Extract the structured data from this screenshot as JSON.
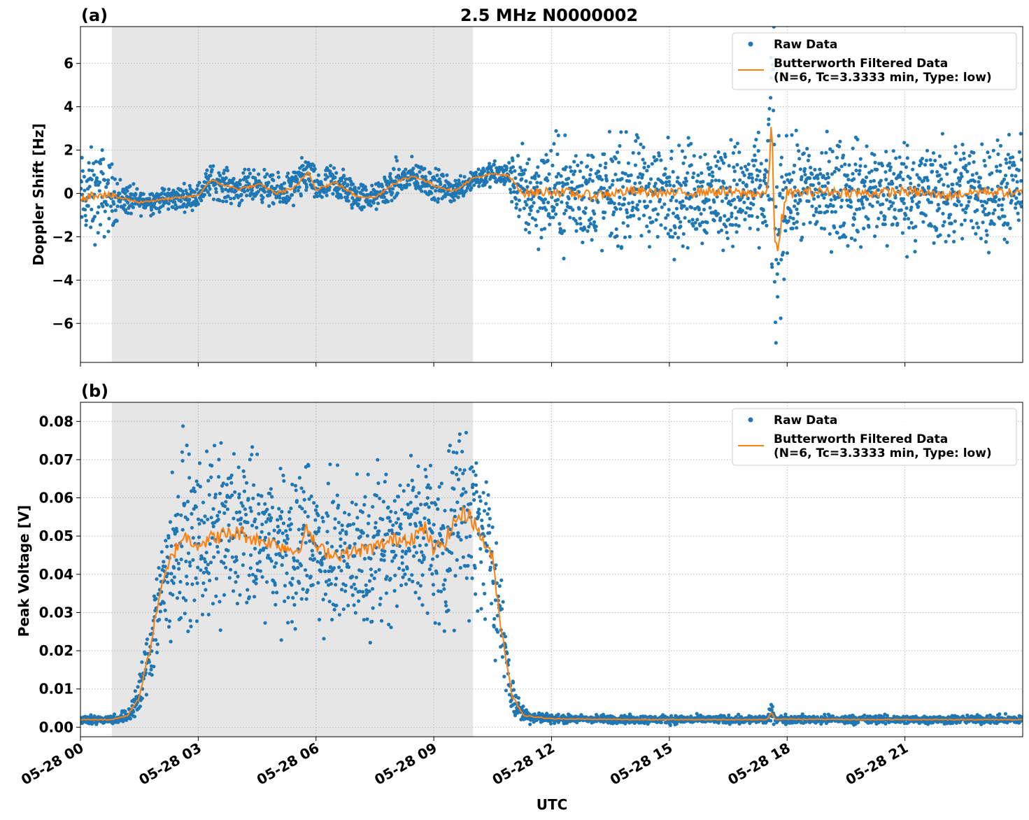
{
  "chart_data": [
    {
      "type": "scatter",
      "panel_label": "(a)",
      "title": "2.5 MHz N0000002",
      "xlabel": "",
      "ylabel": "Doppler Shift [Hz]",
      "ylim": [
        -7.8,
        7.7
      ],
      "yticks": [
        6,
        4,
        2,
        0,
        -2,
        -4,
        -6
      ],
      "ytick_labels": [
        "6",
        "4",
        "2",
        "0",
        "−2",
        "−4",
        "−6"
      ],
      "xlim_hours": [
        0,
        24
      ],
      "grid": true,
      "legend_position": "top-right",
      "shaded_interval_hours": [
        0.8,
        10.0
      ],
      "series": [
        {
          "name": "Raw Data",
          "kind": "points",
          "color": "#1f77b4"
        },
        {
          "name": "Butterworth Filtered Data\n(N=6, Tc=3.3333 min, Type: low)",
          "kind": "line",
          "color": "#ff7f0e"
        }
      ],
      "filtered_profile": {
        "x_hours": [
          0,
          0.5,
          1.0,
          1.5,
          2.0,
          2.5,
          3.0,
          3.3,
          4.0,
          4.6,
          5.0,
          5.5,
          5.8,
          6.0,
          6.5,
          7.0,
          7.5,
          8.0,
          8.5,
          9.0,
          9.5,
          10.0,
          10.5,
          10.9,
          11.3,
          12,
          13,
          14,
          15,
          16,
          17,
          17.5,
          17.6,
          17.7,
          18,
          19,
          20,
          21,
          22,
          23,
          24
        ],
        "y": [
          -0.2,
          0.0,
          -0.2,
          -0.4,
          -0.3,
          -0.2,
          -0.1,
          0.6,
          0.2,
          0.4,
          0.0,
          0.3,
          1.0,
          0.2,
          0.5,
          -0.1,
          -0.2,
          0.5,
          0.8,
          0.4,
          0.1,
          0.7,
          0.9,
          0.8,
          0.0,
          0.1,
          -0.1,
          0.1,
          0.0,
          0.1,
          0.0,
          0.0,
          3.2,
          -2.8,
          0.0,
          0.1,
          0.0,
          0.1,
          -0.1,
          0.1,
          0.0
        ],
        "spread_y": [
          1.0,
          1.2,
          0.5,
          0.3,
          0.3,
          0.3,
          0.3,
          0.4,
          0.4,
          0.4,
          0.4,
          0.5,
          0.5,
          0.4,
          0.5,
          0.4,
          0.3,
          0.5,
          0.4,
          0.4,
          0.3,
          0.3,
          0.3,
          0.4,
          1.2,
          1.3,
          1.3,
          1.3,
          1.3,
          1.3,
          1.3,
          1.3,
          3.5,
          3.5,
          1.3,
          1.3,
          1.3,
          1.3,
          1.3,
          1.3,
          1.2
        ]
      }
    },
    {
      "type": "scatter",
      "panel_label": "(b)",
      "title": "",
      "xlabel": "UTC",
      "ylabel": "Peak Voltage [V]",
      "ylim": [
        -0.0025,
        0.085
      ],
      "yticks": [
        0.08,
        0.07,
        0.06,
        0.05,
        0.04,
        0.03,
        0.02,
        0.01,
        0.0
      ],
      "ytick_labels": [
        "0.08",
        "0.07",
        "0.06",
        "0.05",
        "0.04",
        "0.03",
        "0.02",
        "0.01",
        "0.00"
      ],
      "xlim_hours": [
        0,
        24
      ],
      "xticks_hours": [
        0,
        3,
        6,
        9,
        12,
        15,
        18,
        21
      ],
      "xtick_labels": [
        "05-28 00",
        "05-28 03",
        "05-28 06",
        "05-28 09",
        "05-28 12",
        "05-28 15",
        "05-28 18",
        "05-28 21"
      ],
      "grid": true,
      "legend_position": "top-right",
      "shaded_interval_hours": [
        0.8,
        10.0
      ],
      "series": [
        {
          "name": "Raw Data",
          "kind": "points",
          "color": "#1f77b4"
        },
        {
          "name": "Butterworth Filtered Data\n(N=6, Tc=3.3333 min, Type: low)",
          "kind": "line",
          "color": "#ff7f0e"
        }
      ],
      "filtered_profile": {
        "x_hours": [
          0,
          0.8,
          1.2,
          1.5,
          1.8,
          2.0,
          2.3,
          2.6,
          3.0,
          3.5,
          4.0,
          4.5,
          5.0,
          5.5,
          5.8,
          6.0,
          6.5,
          7.0,
          7.5,
          8.0,
          8.5,
          8.8,
          9.0,
          9.3,
          9.6,
          9.9,
          10.2,
          10.5,
          10.7,
          11.0,
          11.3,
          12,
          14,
          16,
          17.5,
          17.6,
          17.7,
          18,
          20,
          22,
          24
        ],
        "y": [
          0.002,
          0.002,
          0.003,
          0.008,
          0.022,
          0.034,
          0.044,
          0.05,
          0.048,
          0.05,
          0.051,
          0.049,
          0.048,
          0.046,
          0.052,
          0.047,
          0.045,
          0.046,
          0.047,
          0.049,
          0.05,
          0.052,
          0.046,
          0.049,
          0.055,
          0.056,
          0.05,
          0.044,
          0.027,
          0.008,
          0.003,
          0.0022,
          0.002,
          0.002,
          0.002,
          0.004,
          0.002,
          0.0021,
          0.002,
          0.002,
          0.002
        ],
        "spread_y": [
          0.0006,
          0.0006,
          0.001,
          0.003,
          0.006,
          0.008,
          0.011,
          0.012,
          0.011,
          0.012,
          0.012,
          0.011,
          0.01,
          0.011,
          0.012,
          0.01,
          0.01,
          0.01,
          0.011,
          0.011,
          0.012,
          0.012,
          0.011,
          0.012,
          0.013,
          0.013,
          0.011,
          0.01,
          0.007,
          0.003,
          0.001,
          0.0006,
          0.0006,
          0.0006,
          0.0006,
          0.0012,
          0.0006,
          0.0006,
          0.0006,
          0.0006,
          0.0006
        ]
      }
    }
  ]
}
